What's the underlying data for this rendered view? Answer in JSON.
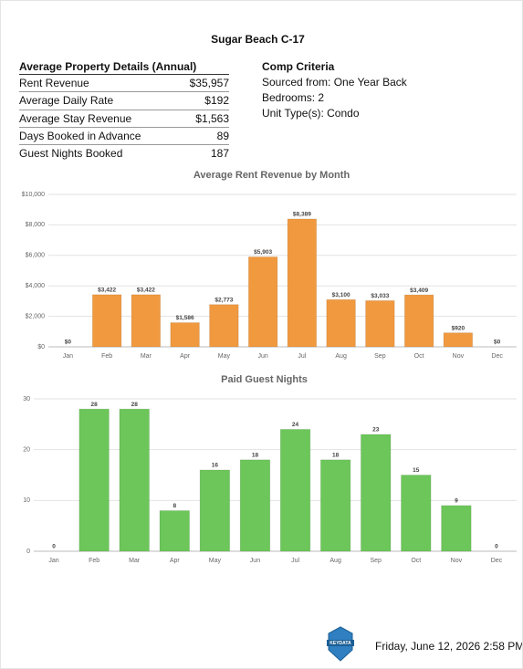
{
  "header": {
    "title": "Sugar Beach C-17"
  },
  "table": {
    "title": "Average Property Details (Annual)",
    "rows": [
      [
        "Rent Revenue",
        "$35,957"
      ],
      [
        "Average Daily Rate",
        "$192"
      ],
      [
        "Average Stay Revenue",
        "$1,563"
      ],
      [
        "Days Booked in Advance",
        "89"
      ],
      [
        "Guest Nights Booked",
        "187"
      ]
    ]
  },
  "criteria": {
    "title": "Comp Criteria",
    "lines": [
      "Sourced from: One Year Back",
      "Bedrooms: 2",
      "Unit Type(s):  Condo"
    ]
  },
  "chart_data": [
    {
      "type": "bar",
      "title": "Average Rent Revenue by Month",
      "categories": [
        "Jan",
        "Feb",
        "Mar",
        "Apr",
        "May",
        "Jun",
        "Jul",
        "Aug",
        "Sep",
        "Oct",
        "Nov",
        "Dec"
      ],
      "values": [
        0,
        3422,
        3422,
        1586,
        2773,
        5903,
        8389,
        3100,
        3033,
        3409,
        920,
        0
      ],
      "value_labels": [
        "$0",
        "$3,422",
        "$3,422",
        "$1,586",
        "$2,773",
        "$5,903",
        "$8,389",
        "$3,100",
        "$3,033",
        "$3,409",
        "$920",
        "$0"
      ],
      "color": "#f0993f",
      "ylim": [
        0,
        10000
      ],
      "yticks": [
        {
          "value": 0,
          "label": "$0"
        },
        {
          "value": 2000,
          "label": "$2,000"
        },
        {
          "value": 4000,
          "label": "$4,000"
        },
        {
          "value": 6000,
          "label": "$6,000"
        },
        {
          "value": 8000,
          "label": "$8,000"
        },
        {
          "value": 10000,
          "label": "$10,000"
        }
      ],
      "grid": true
    },
    {
      "type": "bar",
      "title": "Paid Guest Nights",
      "categories": [
        "Jan",
        "Feb",
        "Mar",
        "Apr",
        "May",
        "Jun",
        "Jul",
        "Aug",
        "Sep",
        "Oct",
        "Nov",
        "Dec"
      ],
      "values": [
        0,
        28,
        28,
        8,
        16,
        18,
        24,
        18,
        23,
        15,
        9,
        0
      ],
      "color": "#6cc65a",
      "ylim": [
        0,
        30
      ],
      "yticks": [
        0,
        10,
        20,
        30
      ],
      "grid": true
    }
  ],
  "footer": {
    "badge": "KEYDATA",
    "date": "Friday, June 12, 2026 2:58 PM"
  }
}
